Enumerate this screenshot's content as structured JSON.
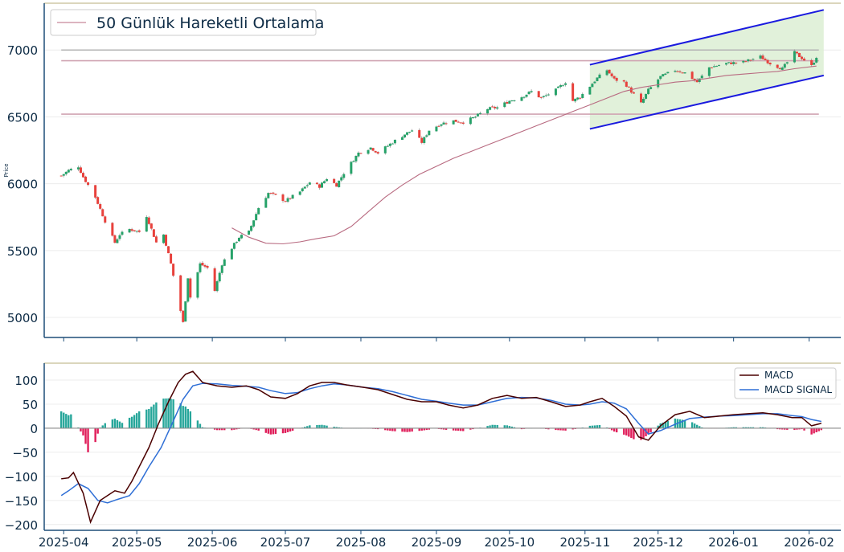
{
  "colors": {
    "axis": "#1f4e79",
    "frame_top": "#cfc8a6",
    "text": "#0d2b45",
    "grid": "#ececec",
    "candle_up": "#26a269",
    "candle_down": "#e8413c",
    "wick": "#999999",
    "sma": "#b86a80",
    "hline_gray": "#b4b4b4",
    "hline_pink": "#d0a4b2",
    "channel_line": "#1a1adf",
    "channel_fill": "#dcefd4",
    "macd": "#4a0000",
    "signal": "#2f6fd6",
    "hist_up": "#26a69a",
    "hist_down": "#e01e5a",
    "zero": "#8c8c8c"
  },
  "legend_top": {
    "sma_label": "50 Günlük Hareketli Ortalama"
  },
  "legend_bottom": {
    "macd_label": "MACD",
    "signal_label": "MACD SIGNAL"
  },
  "chart_data": [
    {
      "type": "candlestick",
      "ylabel": "Price",
      "ylim": [
        4850,
        7350
      ],
      "yticks": [
        "5000",
        "5500",
        "6000",
        "6500",
        "7000"
      ],
      "grid": "horizontal",
      "legend": "top-left",
      "close_anchors": [
        [
          "2025-03-31",
          6060
        ],
        [
          "2025-04-03",
          6100
        ],
        [
          "2025-04-07",
          6130
        ],
        [
          "2025-04-09",
          6050
        ],
        [
          "2025-04-14",
          5900
        ],
        [
          "2025-04-18",
          5720
        ],
        [
          "2025-04-22",
          5560
        ],
        [
          "2025-04-24",
          5620
        ],
        [
          "2025-04-28",
          5660
        ],
        [
          "2025-05-02",
          5640
        ],
        [
          "2025-05-05",
          5760
        ],
        [
          "2025-05-07",
          5660
        ],
        [
          "2025-05-09",
          5560
        ],
        [
          "2025-05-12",
          5620
        ],
        [
          "2025-05-15",
          5400
        ],
        [
          "2025-05-19",
          5050
        ],
        [
          "2025-05-20",
          4960
        ],
        [
          "2025-05-22",
          5300
        ],
        [
          "2025-05-23",
          5150
        ],
        [
          "2025-05-27",
          5400
        ],
        [
          "2025-05-30",
          5370
        ],
        [
          "2025-06-02",
          5200
        ],
        [
          "2025-06-05",
          5400
        ],
        [
          "2025-06-09",
          5520
        ],
        [
          "2025-06-12",
          5600
        ],
        [
          "2025-06-16",
          5640
        ],
        [
          "2025-06-20",
          5820
        ],
        [
          "2025-06-24",
          5930
        ],
        [
          "2025-06-27",
          5910
        ],
        [
          "2025-07-01",
          5870
        ],
        [
          "2025-07-07",
          5940
        ],
        [
          "2025-07-11",
          6010
        ],
        [
          "2025-07-15",
          5980
        ],
        [
          "2025-07-18",
          6040
        ],
        [
          "2025-07-22",
          5990
        ],
        [
          "2025-07-25",
          6080
        ],
        [
          "2025-07-31",
          6230
        ],
        [
          "2025-08-05",
          6270
        ],
        [
          "2025-08-08",
          6230
        ],
        [
          "2025-08-14",
          6310
        ],
        [
          "2025-08-19",
          6370
        ],
        [
          "2025-08-22",
          6400
        ],
        [
          "2025-08-26",
          6310
        ],
        [
          "2025-08-29",
          6400
        ],
        [
          "2025-09-03",
          6450
        ],
        [
          "2025-09-08",
          6470
        ],
        [
          "2025-09-12",
          6460
        ],
        [
          "2025-09-17",
          6500
        ],
        [
          "2025-09-22",
          6560
        ],
        [
          "2025-09-26",
          6570
        ],
        [
          "2025-10-01",
          6620
        ],
        [
          "2025-10-06",
          6650
        ],
        [
          "2025-10-10",
          6690
        ],
        [
          "2025-10-14",
          6640
        ],
        [
          "2025-10-20",
          6700
        ],
        [
          "2025-10-24",
          6760
        ],
        [
          "2025-10-27",
          6620
        ],
        [
          "2025-10-30",
          6650
        ],
        [
          "2025-11-03",
          6730
        ],
        [
          "2025-11-06",
          6790
        ],
        [
          "2025-11-10",
          6850
        ],
        [
          "2025-11-13",
          6780
        ],
        [
          "2025-11-17",
          6760
        ],
        [
          "2025-11-20",
          6690
        ],
        [
          "2025-11-24",
          6600
        ],
        [
          "2025-11-27",
          6700
        ],
        [
          "2025-12-02",
          6800
        ],
        [
          "2025-12-08",
          6850
        ],
        [
          "2025-12-12",
          6830
        ],
        [
          "2025-12-17",
          6760
        ],
        [
          "2025-12-22",
          6870
        ],
        [
          "2025-12-29",
          6900
        ],
        [
          "2026-01-05",
          6910
        ],
        [
          "2026-01-12",
          6950
        ],
        [
          "2026-01-16",
          6900
        ],
        [
          "2026-01-21",
          6860
        ],
        [
          "2026-01-26",
          6980
        ],
        [
          "2026-01-29",
          6940
        ],
        [
          "2026-02-02",
          6880
        ],
        [
          "2026-02-04",
          6950
        ]
      ],
      "sma_50_anchors": [
        [
          "2025-06-09",
          5670
        ],
        [
          "2025-06-16",
          5600
        ],
        [
          "2025-06-23",
          5555
        ],
        [
          "2025-06-30",
          5550
        ],
        [
          "2025-07-07",
          5565
        ],
        [
          "2025-07-14",
          5590
        ],
        [
          "2025-07-21",
          5610
        ],
        [
          "2025-07-28",
          5680
        ],
        [
          "2025-08-04",
          5790
        ],
        [
          "2025-08-11",
          5900
        ],
        [
          "2025-08-18",
          5990
        ],
        [
          "2025-08-25",
          6070
        ],
        [
          "2025-09-01",
          6130
        ],
        [
          "2025-09-08",
          6190
        ],
        [
          "2025-09-15",
          6240
        ],
        [
          "2025-09-22",
          6290
        ],
        [
          "2025-09-29",
          6340
        ],
        [
          "2025-10-06",
          6390
        ],
        [
          "2025-10-13",
          6440
        ],
        [
          "2025-10-20",
          6490
        ],
        [
          "2025-10-27",
          6540
        ],
        [
          "2025-11-03",
          6590
        ],
        [
          "2025-11-10",
          6640
        ],
        [
          "2025-11-17",
          6690
        ],
        [
          "2025-11-24",
          6720
        ],
        [
          "2025-12-01",
          6740
        ],
        [
          "2025-12-08",
          6760
        ],
        [
          "2025-12-15",
          6770
        ],
        [
          "2025-12-22",
          6790
        ],
        [
          "2025-12-29",
          6810
        ],
        [
          "2026-01-05",
          6820
        ],
        [
          "2026-01-12",
          6830
        ],
        [
          "2026-01-19",
          6840
        ],
        [
          "2026-01-26",
          6860
        ],
        [
          "2026-02-04",
          6880
        ]
      ],
      "horizontal_lines": [
        {
          "value": 7000,
          "from": "2025-03-31",
          "to": "2026-02-05",
          "style": "gray"
        },
        {
          "value": 6920,
          "from": "2025-03-31",
          "to": "2026-02-05",
          "style": "pink"
        },
        {
          "value": 6520,
          "from": "2025-03-31",
          "to": "2026-02-05",
          "style": "pink"
        }
      ],
      "channel": {
        "start": "2025-11-03",
        "end": "2026-02-07",
        "upper": [
          6890,
          7300
        ],
        "lower": [
          6410,
          6810
        ]
      }
    },
    {
      "type": "macd",
      "ylim": [
        -212,
        135
      ],
      "yticks": [
        "−200",
        "−150",
        "−100",
        "−50",
        "0",
        "50",
        "100"
      ],
      "legend": "top-right",
      "macd_anchors": [
        [
          "2025-03-31",
          -105
        ],
        [
          "2025-04-03",
          -103
        ],
        [
          "2025-04-05",
          -92
        ],
        [
          "2025-04-09",
          -135
        ],
        [
          "2025-04-12",
          -195
        ],
        [
          "2025-04-16",
          -150
        ],
        [
          "2025-04-19",
          -140
        ],
        [
          "2025-04-22",
          -130
        ],
        [
          "2025-04-26",
          -135
        ],
        [
          "2025-04-29",
          -110
        ],
        [
          "2025-05-02",
          -80
        ],
        [
          "2025-05-06",
          -40
        ],
        [
          "2025-05-10",
          10
        ],
        [
          "2025-05-14",
          55
        ],
        [
          "2025-05-18",
          95
        ],
        [
          "2025-05-21",
          112
        ],
        [
          "2025-05-24",
          118
        ],
        [
          "2025-05-28",
          95
        ],
        [
          "2025-06-03",
          88
        ],
        [
          "2025-06-09",
          85
        ],
        [
          "2025-06-15",
          88
        ],
        [
          "2025-06-20",
          80
        ],
        [
          "2025-06-25",
          65
        ],
        [
          "2025-07-01",
          62
        ],
        [
          "2025-07-06",
          72
        ],
        [
          "2025-07-11",
          88
        ],
        [
          "2025-07-16",
          95
        ],
        [
          "2025-07-21",
          95
        ],
        [
          "2025-07-26",
          90
        ],
        [
          "2025-08-02",
          85
        ],
        [
          "2025-08-08",
          80
        ],
        [
          "2025-08-14",
          70
        ],
        [
          "2025-08-20",
          60
        ],
        [
          "2025-08-26",
          55
        ],
        [
          "2025-09-01",
          55
        ],
        [
          "2025-09-06",
          48
        ],
        [
          "2025-09-12",
          42
        ],
        [
          "2025-09-18",
          48
        ],
        [
          "2025-09-24",
          62
        ],
        [
          "2025-09-30",
          68
        ],
        [
          "2025-10-06",
          62
        ],
        [
          "2025-10-12",
          64
        ],
        [
          "2025-10-18",
          55
        ],
        [
          "2025-10-24",
          45
        ],
        [
          "2025-10-30",
          48
        ],
        [
          "2025-11-03",
          55
        ],
        [
          "2025-11-08",
          62
        ],
        [
          "2025-11-13",
          45
        ],
        [
          "2025-11-18",
          25
        ],
        [
          "2025-11-23",
          -18
        ],
        [
          "2025-11-27",
          -25
        ],
        [
          "2025-12-02",
          5
        ],
        [
          "2025-12-08",
          28
        ],
        [
          "2025-12-14",
          35
        ],
        [
          "2025-12-20",
          22
        ],
        [
          "2025-12-26",
          25
        ],
        [
          "2026-01-01",
          28
        ],
        [
          "2026-01-07",
          30
        ],
        [
          "2026-01-13",
          32
        ],
        [
          "2026-01-19",
          28
        ],
        [
          "2026-01-25",
          22
        ],
        [
          "2026-01-29",
          22
        ],
        [
          "2026-02-02",
          5
        ],
        [
          "2026-02-06",
          10
        ]
      ],
      "signal_anchors": [
        [
          "2025-03-31",
          -140
        ],
        [
          "2025-04-03",
          -130
        ],
        [
          "2025-04-07",
          -115
        ],
        [
          "2025-04-11",
          -125
        ],
        [
          "2025-04-15",
          -150
        ],
        [
          "2025-04-19",
          -155
        ],
        [
          "2025-04-23",
          -148
        ],
        [
          "2025-04-28",
          -140
        ],
        [
          "2025-05-02",
          -115
        ],
        [
          "2025-05-06",
          -80
        ],
        [
          "2025-05-11",
          -40
        ],
        [
          "2025-05-16",
          15
        ],
        [
          "2025-05-20",
          60
        ],
        [
          "2025-05-24",
          88
        ],
        [
          "2025-05-28",
          93
        ],
        [
          "2025-06-03",
          92
        ],
        [
          "2025-06-09",
          89
        ],
        [
          "2025-06-15",
          87
        ],
        [
          "2025-06-20",
          85
        ],
        [
          "2025-06-25",
          78
        ],
        [
          "2025-07-01",
          72
        ],
        [
          "2025-07-06",
          74
        ],
        [
          "2025-07-11",
          82
        ],
        [
          "2025-07-16",
          88
        ],
        [
          "2025-07-21",
          92
        ],
        [
          "2025-07-26",
          90
        ],
        [
          "2025-08-02",
          85
        ],
        [
          "2025-08-08",
          82
        ],
        [
          "2025-08-14",
          76
        ],
        [
          "2025-08-20",
          68
        ],
        [
          "2025-08-26",
          60
        ],
        [
          "2025-09-01",
          56
        ],
        [
          "2025-09-06",
          52
        ],
        [
          "2025-09-12",
          48
        ],
        [
          "2025-09-18",
          48
        ],
        [
          "2025-09-24",
          55
        ],
        [
          "2025-09-30",
          62
        ],
        [
          "2025-10-06",
          64
        ],
        [
          "2025-10-12",
          63
        ],
        [
          "2025-10-18",
          58
        ],
        [
          "2025-10-24",
          50
        ],
        [
          "2025-10-30",
          48
        ],
        [
          "2025-11-03",
          50
        ],
        [
          "2025-11-08",
          55
        ],
        [
          "2025-11-13",
          52
        ],
        [
          "2025-11-18",
          40
        ],
        [
          "2025-11-23",
          10
        ],
        [
          "2025-11-27",
          -12
        ],
        [
          "2025-12-02",
          -5
        ],
        [
          "2025-12-08",
          8
        ],
        [
          "2025-12-14",
          20
        ],
        [
          "2025-12-20",
          23
        ],
        [
          "2025-12-26",
          25
        ],
        [
          "2026-01-01",
          26
        ],
        [
          "2026-01-07",
          28
        ],
        [
          "2026-01-13",
          30
        ],
        [
          "2026-01-19",
          30
        ],
        [
          "2026-01-25",
          26
        ],
        [
          "2026-01-29",
          24
        ],
        [
          "2026-02-02",
          18
        ],
        [
          "2026-02-06",
          14
        ]
      ]
    }
  ],
  "x_axis": {
    "range": [
      "2025-03-24",
      "2026-02-14"
    ],
    "ticks": [
      [
        "2025-04-01",
        "2025-04"
      ],
      [
        "2025-05-01",
        "2025-05"
      ],
      [
        "2025-06-01",
        "2025-06"
      ],
      [
        "2025-07-01",
        "2025-07"
      ],
      [
        "2025-08-01",
        "2025-08"
      ],
      [
        "2025-09-01",
        "2025-09"
      ],
      [
        "2025-10-01",
        "2025-10"
      ],
      [
        "2025-11-01",
        "2025-11"
      ],
      [
        "2025-12-01",
        "2025-12"
      ],
      [
        "2026-01-01",
        "2026-01"
      ],
      [
        "2026-02-01",
        "2026-02"
      ]
    ]
  }
}
